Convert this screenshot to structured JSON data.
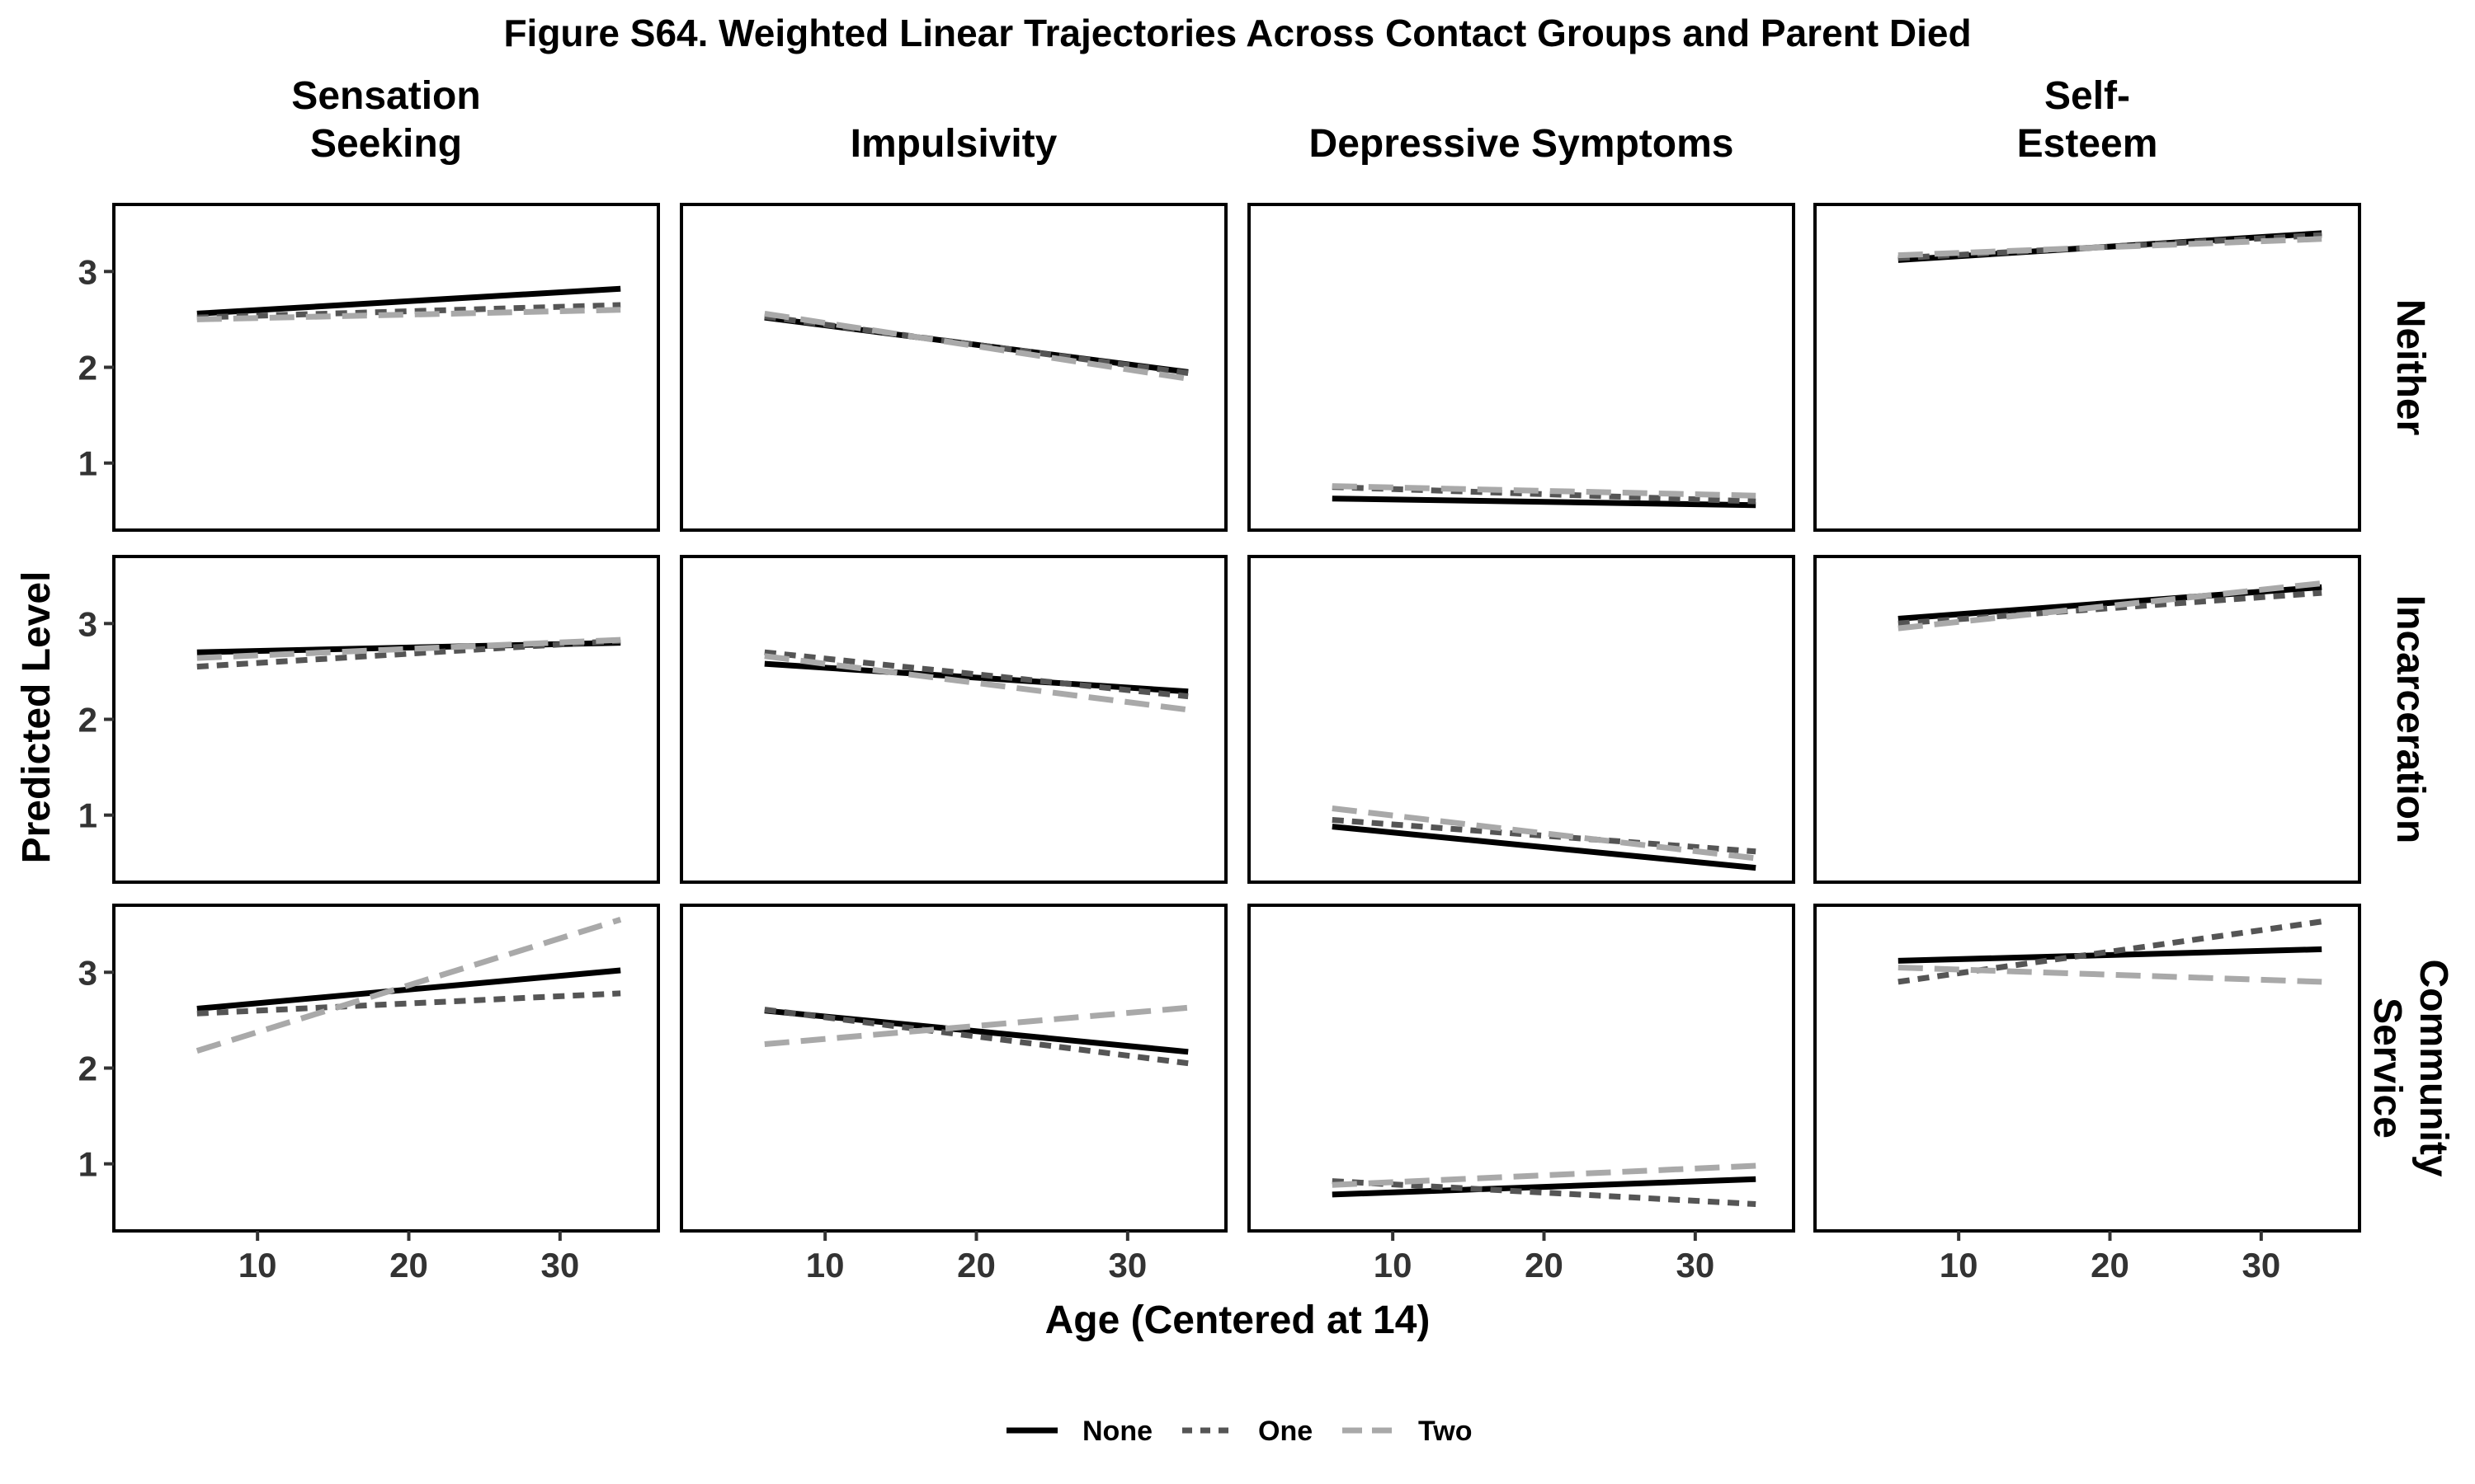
{
  "chart_data": {
    "type": "line",
    "title": "Figure S64. Weighted Linear Trajectories Across Contact Groups and Parent Died",
    "xlabel": "Age (Centered at 14)",
    "ylabel": "Predicted Level",
    "xlim": [
      0.5,
      36.5
    ],
    "ylim": [
      0.3,
      3.7
    ],
    "xticks": [
      10,
      20,
      30
    ],
    "yticks": [
      1,
      2,
      3
    ],
    "column_labels": [
      [
        "Sensation",
        "Seeking"
      ],
      [
        "Impulsivity"
      ],
      [
        "Depressive Symptoms"
      ],
      [
        "Self-",
        "Esteem"
      ]
    ],
    "row_labels": [
      [
        "Neither"
      ],
      [
        "Incarceration"
      ],
      [
        "Community",
        "Service"
      ]
    ],
    "legend": {
      "position": "bottom",
      "entries": [
        "None",
        "One",
        "Two"
      ]
    },
    "series_styles": [
      {
        "name": "None",
        "color": "#000000",
        "dash": ""
      },
      {
        "name": "One",
        "color": "#555555",
        "dash": "14 10"
      },
      {
        "name": "Two",
        "color": "#a9a9a9",
        "dash": "30 14"
      }
    ],
    "panels": [
      [
        {
          "series": [
            {
              "name": "None",
              "x": [
                6,
                34
              ],
              "y": [
                2.56,
                2.82
              ]
            },
            {
              "name": "One",
              "x": [
                6,
                34
              ],
              "y": [
                2.52,
                2.65
              ]
            },
            {
              "name": "Two",
              "x": [
                6,
                34
              ],
              "y": [
                2.5,
                2.6
              ]
            }
          ]
        },
        {
          "series": [
            {
              "name": "None",
              "x": [
                6,
                34
              ],
              "y": [
                2.52,
                1.95
              ]
            },
            {
              "name": "One",
              "x": [
                6,
                34
              ],
              "y": [
                2.53,
                1.94
              ]
            },
            {
              "name": "Two",
              "x": [
                6,
                34
              ],
              "y": [
                2.56,
                1.88
              ]
            }
          ]
        },
        {
          "series": [
            {
              "name": "None",
              "x": [
                6,
                34
              ],
              "y": [
                0.63,
                0.56
              ]
            },
            {
              "name": "One",
              "x": [
                6,
                34
              ],
              "y": [
                0.75,
                0.6
              ]
            },
            {
              "name": "Two",
              "x": [
                6,
                34
              ],
              "y": [
                0.76,
                0.66
              ]
            }
          ]
        },
        {
          "series": [
            {
              "name": "None",
              "x": [
                6,
                34
              ],
              "y": [
                3.12,
                3.4
              ]
            },
            {
              "name": "One",
              "x": [
                6,
                34
              ],
              "y": [
                3.14,
                3.38
              ]
            },
            {
              "name": "Two",
              "x": [
                6,
                34
              ],
              "y": [
                3.17,
                3.34
              ]
            }
          ]
        }
      ],
      [
        {
          "series": [
            {
              "name": "None",
              "x": [
                6,
                34
              ],
              "y": [
                2.7,
                2.8
              ]
            },
            {
              "name": "One",
              "x": [
                6,
                34
              ],
              "y": [
                2.55,
                2.82
              ]
            },
            {
              "name": "Two",
              "x": [
                6,
                34
              ],
              "y": [
                2.64,
                2.83
              ]
            }
          ]
        },
        {
          "series": [
            {
              "name": "None",
              "x": [
                6,
                34
              ],
              "y": [
                2.58,
                2.29
              ]
            },
            {
              "name": "One",
              "x": [
                6,
                34
              ],
              "y": [
                2.7,
                2.24
              ]
            },
            {
              "name": "Two",
              "x": [
                6,
                34
              ],
              "y": [
                2.66,
                2.1
              ]
            }
          ]
        },
        {
          "series": [
            {
              "name": "None",
              "x": [
                6,
                34
              ],
              "y": [
                0.88,
                0.45
              ]
            },
            {
              "name": "One",
              "x": [
                6,
                34
              ],
              "y": [
                0.95,
                0.62
              ]
            },
            {
              "name": "Two",
              "x": [
                6,
                34
              ],
              "y": [
                1.07,
                0.55
              ]
            }
          ]
        },
        {
          "series": [
            {
              "name": "None",
              "x": [
                6,
                34
              ],
              "y": [
                3.05,
                3.38
              ]
            },
            {
              "name": "One",
              "x": [
                6,
                34
              ],
              "y": [
                3.0,
                3.32
              ]
            },
            {
              "name": "Two",
              "x": [
                6,
                34
              ],
              "y": [
                2.95,
                3.42
              ]
            }
          ]
        }
      ],
      [
        {
          "series": [
            {
              "name": "None",
              "x": [
                6,
                34
              ],
              "y": [
                2.62,
                3.02
              ]
            },
            {
              "name": "One",
              "x": [
                6,
                34
              ],
              "y": [
                2.57,
                2.78
              ]
            },
            {
              "name": "Two",
              "x": [
                6,
                34
              ],
              "y": [
                2.18,
                3.55
              ]
            }
          ]
        },
        {
          "series": [
            {
              "name": "None",
              "x": [
                6,
                34
              ],
              "y": [
                2.6,
                2.17
              ]
            },
            {
              "name": "One",
              "x": [
                6,
                34
              ],
              "y": [
                2.61,
                2.05
              ]
            },
            {
              "name": "Two",
              "x": [
                6,
                34
              ],
              "y": [
                2.25,
                2.63
              ]
            }
          ]
        },
        {
          "series": [
            {
              "name": "None",
              "x": [
                6,
                34
              ],
              "y": [
                0.68,
                0.84
              ]
            },
            {
              "name": "One",
              "x": [
                6,
                34
              ],
              "y": [
                0.82,
                0.58
              ]
            },
            {
              "name": "Two",
              "x": [
                6,
                34
              ],
              "y": [
                0.78,
                0.98
              ]
            }
          ]
        },
        {
          "series": [
            {
              "name": "None",
              "x": [
                6,
                34
              ],
              "y": [
                3.12,
                3.24
              ]
            },
            {
              "name": "One",
              "x": [
                6,
                34
              ],
              "y": [
                2.9,
                3.53
              ]
            },
            {
              "name": "Two",
              "x": [
                6,
                34
              ],
              "y": [
                3.05,
                2.9
              ]
            }
          ]
        }
      ]
    ]
  }
}
